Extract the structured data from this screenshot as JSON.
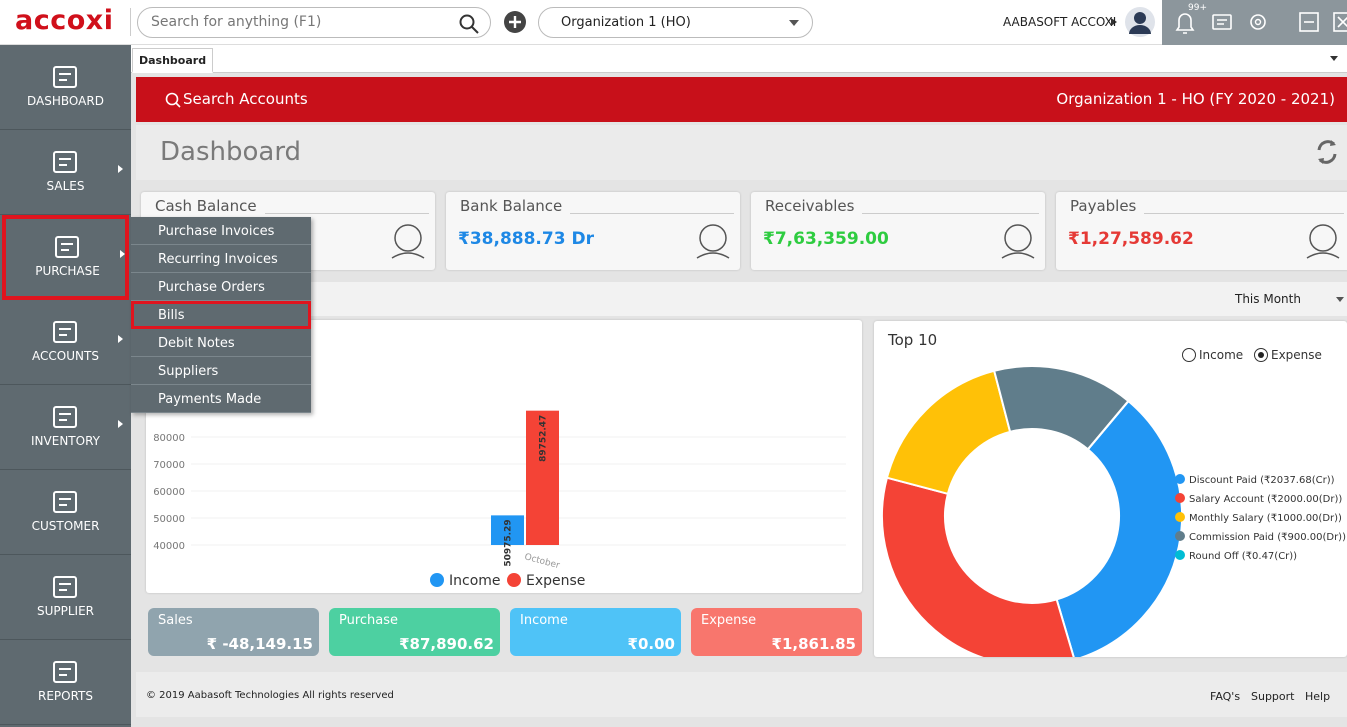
{
  "top_bar": {
    "logo": "accoxi",
    "search_placeholder": "Search for anything (F1)",
    "organization": "Organization 1 (HO)",
    "user": "AABASOFT ACCOXI",
    "notification_count": "99+"
  },
  "sidebar": {
    "items": [
      {
        "label": "DASHBOARD",
        "submenu": false,
        "highlight": false
      },
      {
        "label": "SALES",
        "submenu": true,
        "highlight": false
      },
      {
        "label": "PURCHASE",
        "submenu": true,
        "highlight": true
      },
      {
        "label": "ACCOUNTS",
        "submenu": true,
        "highlight": false
      },
      {
        "label": "INVENTORY",
        "submenu": true,
        "highlight": false
      },
      {
        "label": "CUSTOMER",
        "submenu": false,
        "highlight": false
      },
      {
        "label": "SUPPLIER",
        "submenu": false,
        "highlight": false
      },
      {
        "label": "REPORTS",
        "submenu": false,
        "highlight": false
      }
    ]
  },
  "purchase_menu": {
    "items": [
      {
        "label": "Purchase Invoices",
        "highlight": false
      },
      {
        "label": "Recurring Invoices",
        "highlight": false
      },
      {
        "label": "Purchase Orders",
        "highlight": false
      },
      {
        "label": "Bills",
        "highlight": true
      },
      {
        "label": "Debit Notes",
        "highlight": false
      },
      {
        "label": "Suppliers",
        "highlight": false
      },
      {
        "label": "Payments Made",
        "highlight": false
      }
    ]
  },
  "tab": "Dashboard",
  "banner": {
    "search": "Search Accounts",
    "organization": "Organization 1 - HO (FY 2020 - 2021)"
  },
  "page_title": "Dashboard",
  "cards": [
    {
      "label": "Cash Balance"
    },
    {
      "label": "Bank Balance",
      "value": "₹38,888.73 Dr",
      "color": "#1e88e5"
    },
    {
      "label": "Receivables",
      "value": "₹7,63,359.00",
      "color": "#2ecc40"
    },
    {
      "label": "Payables",
      "value": "₹1,27,589.62",
      "color": "#e53935"
    }
  ],
  "period": "This Month",
  "income_expense_chart": {
    "type": "bar",
    "categories": [
      "October"
    ],
    "series": [
      {
        "name": "Income",
        "color": "#2196f3",
        "values": [
          50975.29
        ]
      },
      {
        "name": "Expense",
        "color": "#f44336",
        "values": [
          89752.47
        ]
      }
    ],
    "ylim": [
      40000,
      90000
    ],
    "yticks": [
      40000,
      50000,
      60000,
      70000,
      80000
    ]
  },
  "top10": {
    "type": "pie",
    "title": "Top 10",
    "options": [
      "Income",
      "Expense"
    ],
    "selected": "Expense",
    "categories": [
      "Discount Paid (₹2037.68(Cr))",
      "Salary Account (₹2000.00(Dr))",
      "Monthly Salary (₹1000.00(Dr))",
      "Commission Paid (₹900.00(Dr))",
      "Round Off (₹0.47(Cr))"
    ],
    "values": [
      2037.68,
      2000,
      1000,
      900,
      0.47
    ],
    "colors": [
      "#2196f3",
      "#f44336",
      "#ffc107",
      "#607d8b",
      "#00bcd4"
    ]
  },
  "summary": [
    {
      "label": "Sales",
      "value": "₹ -48,149.15",
      "color": "#90a4ae"
    },
    {
      "label": "Purchase",
      "value": "₹87,890.62",
      "color": "#4dd0a1"
    },
    {
      "label": "Income",
      "value": "₹0.00",
      "color": "#4fc3f7"
    },
    {
      "label": "Expense",
      "value": "₹1,861.85",
      "color": "#f8766d"
    }
  ],
  "footer": {
    "copyright": "© 2019 Aabasoft Technologies All rights reserved",
    "links": [
      "FAQ's",
      "Support",
      "Help"
    ]
  }
}
